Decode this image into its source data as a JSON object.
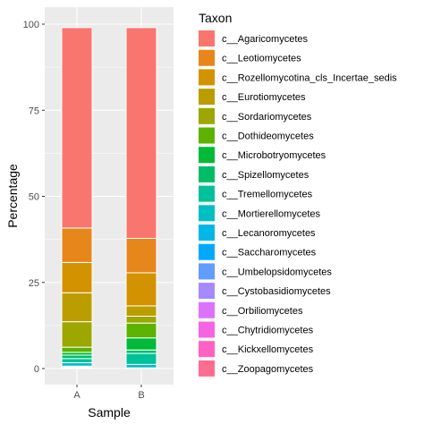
{
  "chart_data": {
    "type": "bar",
    "stacked": true,
    "xlabel": "Sample",
    "ylabel": "Percentage",
    "ylim": [
      0,
      100
    ],
    "yticks": [
      0,
      25,
      50,
      75,
      100
    ],
    "categories": [
      "A",
      "B"
    ],
    "legend_title": "Taxon",
    "legend_position": "right",
    "grid": true,
    "series": [
      {
        "name": "c__Agaricomycetes",
        "color": "#F8766D",
        "values": [
          58.2,
          61.2
        ]
      },
      {
        "name": "c__Leotiomycetes",
        "color": "#E7861B",
        "values": [
          10.0,
          10.0
        ]
      },
      {
        "name": "c__Rozellomycotina_cls_Incertae_sedis",
        "color": "#D39200",
        "values": [
          8.8,
          9.6
        ]
      },
      {
        "name": "c__Eurotiomycetes",
        "color": "#BB9D00",
        "values": [
          8.4,
          3.0
        ]
      },
      {
        "name": "c__Sordariomycetes",
        "color": "#9CA700",
        "values": [
          7.4,
          2.0
        ]
      },
      {
        "name": "c__Dothideomycetes",
        "color": "#5BB300",
        "values": [
          1.5,
          4.3
        ]
      },
      {
        "name": "c__Microbotryomycetes",
        "color": "#00BA38",
        "values": [
          0.8,
          3.5
        ]
      },
      {
        "name": "c__Spizellomycetes",
        "color": "#00BE67",
        "values": [
          1.0,
          1.0
        ]
      },
      {
        "name": "c__Tremellomycetes",
        "color": "#00C19A",
        "values": [
          1.2,
          3.2
        ]
      },
      {
        "name": "c__Mortierellomycetes",
        "color": "#00BFC4",
        "values": [
          1.0,
          1.0
        ]
      },
      {
        "name": "c__Lecanoromycetes",
        "color": "#00B8E7",
        "values": [
          0.2,
          0.1
        ]
      },
      {
        "name": "c__Saccharomycetes",
        "color": "#00A9FF",
        "values": [
          0.1,
          0.1
        ]
      },
      {
        "name": "c__Umbelopsidomycetes",
        "color": "#619CFF",
        "values": [
          0.1,
          0.0
        ]
      },
      {
        "name": "c__Cystobasidiomycetes",
        "color": "#A58AFF",
        "values": [
          0.1,
          0.0
        ]
      },
      {
        "name": "c__Orbiliomycetes",
        "color": "#DB72FB",
        "values": [
          0.1,
          0.0
        ]
      },
      {
        "name": "c__Chytridiomycetes",
        "color": "#F564E3",
        "values": [
          0.05,
          0.0
        ]
      },
      {
        "name": "c__Kickxellomycetes",
        "color": "#FF61C3",
        "values": [
          0.05,
          0.0
        ]
      },
      {
        "name": "c__Zoopagomycetes",
        "color": "#FF6C91",
        "values": [
          0.0,
          0.0
        ]
      }
    ]
  }
}
